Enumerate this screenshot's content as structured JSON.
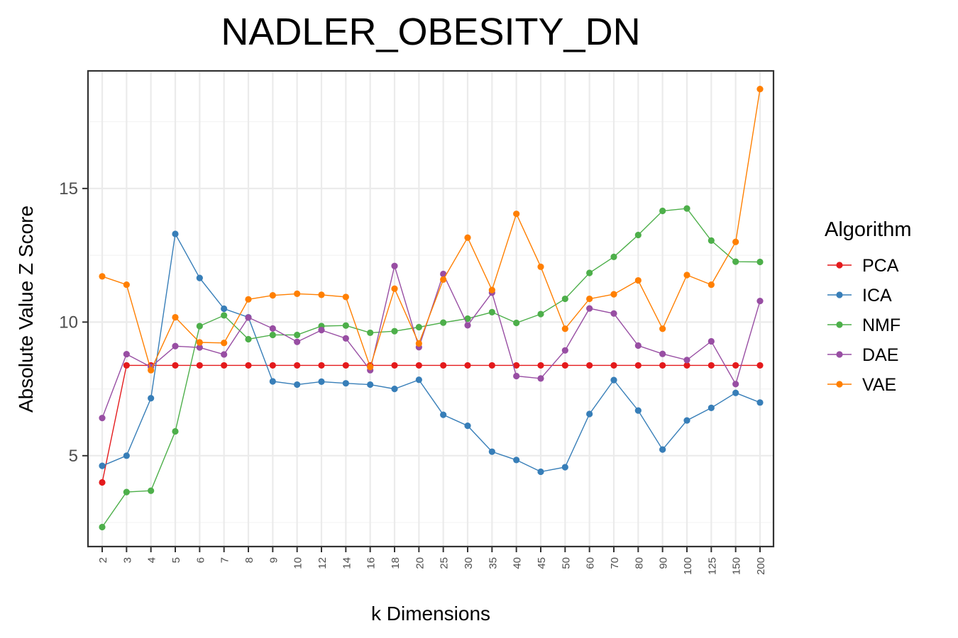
{
  "chart_data": {
    "type": "line",
    "title": "NADLER_OBESITY_DN",
    "xlabel": "k Dimensions",
    "ylabel": "Absolute Value Z Score",
    "categories": [
      "2",
      "3",
      "4",
      "5",
      "6",
      "7",
      "8",
      "9",
      "10",
      "12",
      "14",
      "16",
      "18",
      "20",
      "25",
      "30",
      "35",
      "40",
      "45",
      "50",
      "60",
      "70",
      "80",
      "90",
      "100",
      "125",
      "150",
      "200"
    ],
    "yticks": [
      5,
      10,
      15
    ],
    "ylim": [
      1.6,
      19.4
    ],
    "grid": true,
    "legend_title": "Algorithm",
    "legend_position": "right",
    "series": [
      {
        "name": "PCA",
        "color": "#e41a1c",
        "values": [
          4.0,
          8.38,
          8.38,
          8.38,
          8.38,
          8.38,
          8.38,
          8.38,
          8.38,
          8.38,
          8.38,
          8.38,
          8.38,
          8.38,
          8.38,
          8.38,
          8.38,
          8.38,
          8.38,
          8.38,
          8.38,
          8.38,
          8.38,
          8.38,
          8.38,
          8.38,
          8.38,
          8.38
        ]
      },
      {
        "name": "ICA",
        "color": "#377eb8",
        "values": [
          4.62,
          5.0,
          7.15,
          13.3,
          11.65,
          10.5,
          10.18,
          7.78,
          7.66,
          7.77,
          7.71,
          7.66,
          7.5,
          7.84,
          6.53,
          6.12,
          5.15,
          4.84,
          4.4,
          4.57,
          6.56,
          7.83,
          6.69,
          5.23,
          6.32,
          6.79,
          7.35,
          6.99
        ]
      },
      {
        "name": "NMF",
        "color": "#4daf4a",
        "values": [
          2.33,
          3.64,
          3.69,
          5.91,
          9.85,
          10.25,
          9.36,
          9.52,
          9.52,
          9.85,
          9.87,
          9.6,
          9.66,
          9.81,
          9.98,
          10.13,
          10.37,
          9.97,
          10.3,
          10.87,
          11.84,
          12.44,
          13.26,
          14.16,
          14.25,
          13.05,
          12.26,
          12.25
        ]
      },
      {
        "name": "DAE",
        "color": "#984ea3",
        "values": [
          6.41,
          8.8,
          8.32,
          9.1,
          9.05,
          8.79,
          10.17,
          9.76,
          9.26,
          9.7,
          9.39,
          8.2,
          12.1,
          9.06,
          11.8,
          9.88,
          11.1,
          7.98,
          7.89,
          8.94,
          10.51,
          10.32,
          9.12,
          8.81,
          8.58,
          9.28,
          7.68,
          10.79
        ]
      },
      {
        "name": "VAE",
        "color": "#ff7f00",
        "values": [
          11.71,
          11.4,
          8.2,
          10.18,
          9.24,
          9.22,
          10.85,
          11.0,
          11.06,
          11.02,
          10.94,
          8.32,
          11.25,
          9.2,
          11.59,
          13.16,
          11.2,
          14.05,
          12.07,
          9.75,
          10.87,
          11.04,
          11.56,
          9.75,
          11.76,
          11.4,
          13.0,
          18.72
        ]
      }
    ]
  }
}
